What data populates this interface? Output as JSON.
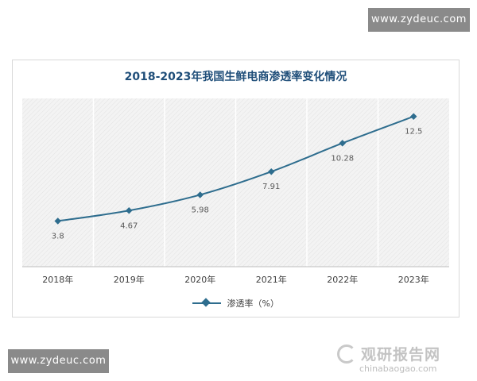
{
  "watermarks": {
    "top": "www.zydeuc.com",
    "bottom": "www.zydeuc.com"
  },
  "logo": {
    "cn": "观研报告网",
    "en": "chinabaogao.com",
    "icon": "logo-swirl-icon"
  },
  "colors": {
    "series": "#2e6d8e",
    "title": "#1f4e79",
    "plot_background": "#f2f2f2"
  },
  "chart_data": {
    "type": "line",
    "title": "2018-2023年我国生鲜电商渗透率变化情况",
    "categories": [
      "2018年",
      "2019年",
      "2020年",
      "2021年",
      "2022年",
      "2023年"
    ],
    "series": [
      {
        "name": "渗透率（%）",
        "values": [
          3.8,
          4.67,
          5.98,
          7.91,
          10.28,
          12.5
        ],
        "data_labels": [
          "3.8",
          "4.67",
          "5.98",
          "7.91",
          "10.28",
          "12.5"
        ]
      }
    ],
    "xlabel": "",
    "ylabel": "",
    "ylim": [
      0,
      14
    ],
    "y_axis_visible": false,
    "grid": "vertical",
    "legend": "bottom",
    "marker": "diamond"
  }
}
